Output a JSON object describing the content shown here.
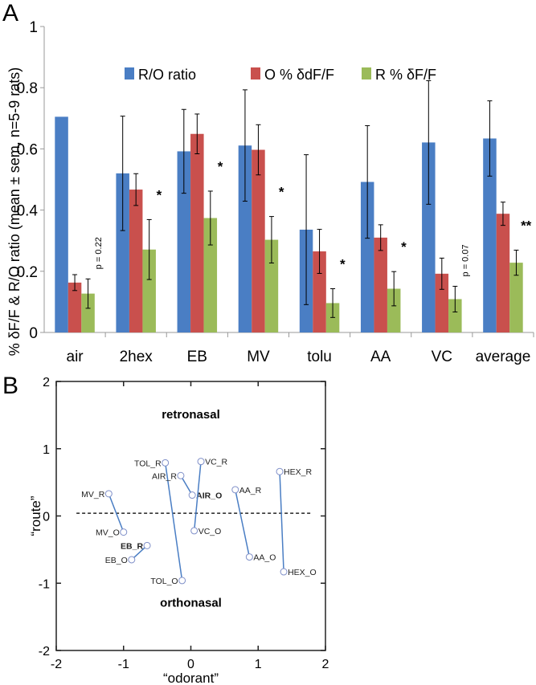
{
  "chart_data": [
    {
      "panel_label": "A",
      "type": "bar",
      "ylabel": "% δF/F & R/O ratio (mean ± sem, n=5-9 rats)",
      "ylim": [
        0,
        1
      ],
      "yticks": [
        "0",
        "0.2",
        "0.4",
        "0.6",
        "0.8",
        "1"
      ],
      "legend_position": "top-center",
      "categories": [
        "air",
        "2hex",
        "EB",
        "MV",
        "tolu",
        "AA",
        "VC",
        "average"
      ],
      "series": [
        {
          "name": "R/O ratio",
          "color": "#4a7ec4",
          "values": [
            0.705,
            0.52,
            0.592,
            0.611,
            0.336,
            0.492,
            0.621,
            0.634
          ],
          "errors": [
            0,
            0.187,
            0.137,
            0.182,
            0.245,
            0.184,
            0.202,
            0.123
          ]
        },
        {
          "name": "O % δdF/F",
          "color": "#c9504d",
          "values": [
            0.163,
            0.467,
            0.649,
            0.597,
            0.265,
            0.31,
            0.192,
            0.388
          ],
          "errors": [
            0.026,
            0.052,
            0.065,
            0.082,
            0.072,
            0.042,
            0.051,
            0.038
          ]
        },
        {
          "name": "R % δF/F",
          "color": "#9bbb59",
          "values": [
            0.127,
            0.271,
            0.374,
            0.303,
            0.096,
            0.143,
            0.109,
            0.228
          ],
          "errors": [
            0.048,
            0.098,
            0.088,
            0.076,
            0.047,
            0.056,
            0.042,
            0.041
          ]
        }
      ],
      "annotations": [
        {
          "category": "air",
          "text": "p = 0.22",
          "rotated": true
        },
        {
          "category": "2hex",
          "text": "*"
        },
        {
          "category": "EB",
          "text": "*"
        },
        {
          "category": "MV",
          "text": "*"
        },
        {
          "category": "tolu",
          "text": "*"
        },
        {
          "category": "AA",
          "text": "*"
        },
        {
          "category": "VC",
          "text": "p = 0.07",
          "rotated": true
        },
        {
          "category": "average",
          "text": "**"
        }
      ]
    },
    {
      "panel_label": "B",
      "type": "scatter",
      "xlabel": "“odorant”",
      "ylabel": "“route”",
      "xlim": [
        -2,
        2
      ],
      "ylim": [
        -2,
        2
      ],
      "xticks": [
        "-2",
        "-1",
        "0",
        "1",
        "2"
      ],
      "yticks": [
        "-2",
        "-1",
        "0",
        "1",
        "2"
      ],
      "region_labels": {
        "top": "retronasal",
        "bottom": "orthonasal"
      },
      "reference_line": {
        "y": 0.04,
        "x_from": -1.7,
        "x_to": 1.8,
        "style": "dashed"
      },
      "line_color": "#4a7ec4",
      "pairs": [
        {
          "r": {
            "label": "MV_R",
            "x": -1.22,
            "y": 0.33
          },
          "o": {
            "label": "MV_O",
            "x": -1.0,
            "y": -0.24
          }
        },
        {
          "r": {
            "label": "EB_R",
            "x": -0.65,
            "y": -0.44,
            "bold": true
          },
          "o": {
            "label": "EB_O",
            "x": -0.88,
            "y": -0.65
          }
        },
        {
          "r": {
            "label": "TOL_R",
            "x": -0.38,
            "y": 0.79
          },
          "o": {
            "label": "TOL_O",
            "x": -0.13,
            "y": -0.96
          }
        },
        {
          "r": {
            "label": "AIR_R",
            "x": -0.15,
            "y": 0.6
          },
          "o": {
            "label": "AIR_O",
            "x": 0.02,
            "y": 0.31,
            "bold": true
          }
        },
        {
          "r": {
            "label": "VC_R",
            "x": 0.15,
            "y": 0.81
          },
          "o": {
            "label": "VC_O",
            "x": 0.05,
            "y": -0.22
          }
        },
        {
          "r": {
            "label": "AA_R",
            "x": 0.66,
            "y": 0.39
          },
          "o": {
            "label": "AA_O",
            "x": 0.87,
            "y": -0.61
          }
        },
        {
          "r": {
            "label": "HEX_R",
            "x": 1.32,
            "y": 0.66
          },
          "o": {
            "label": "HEX_O",
            "x": 1.38,
            "y": -0.83
          }
        }
      ]
    }
  ]
}
